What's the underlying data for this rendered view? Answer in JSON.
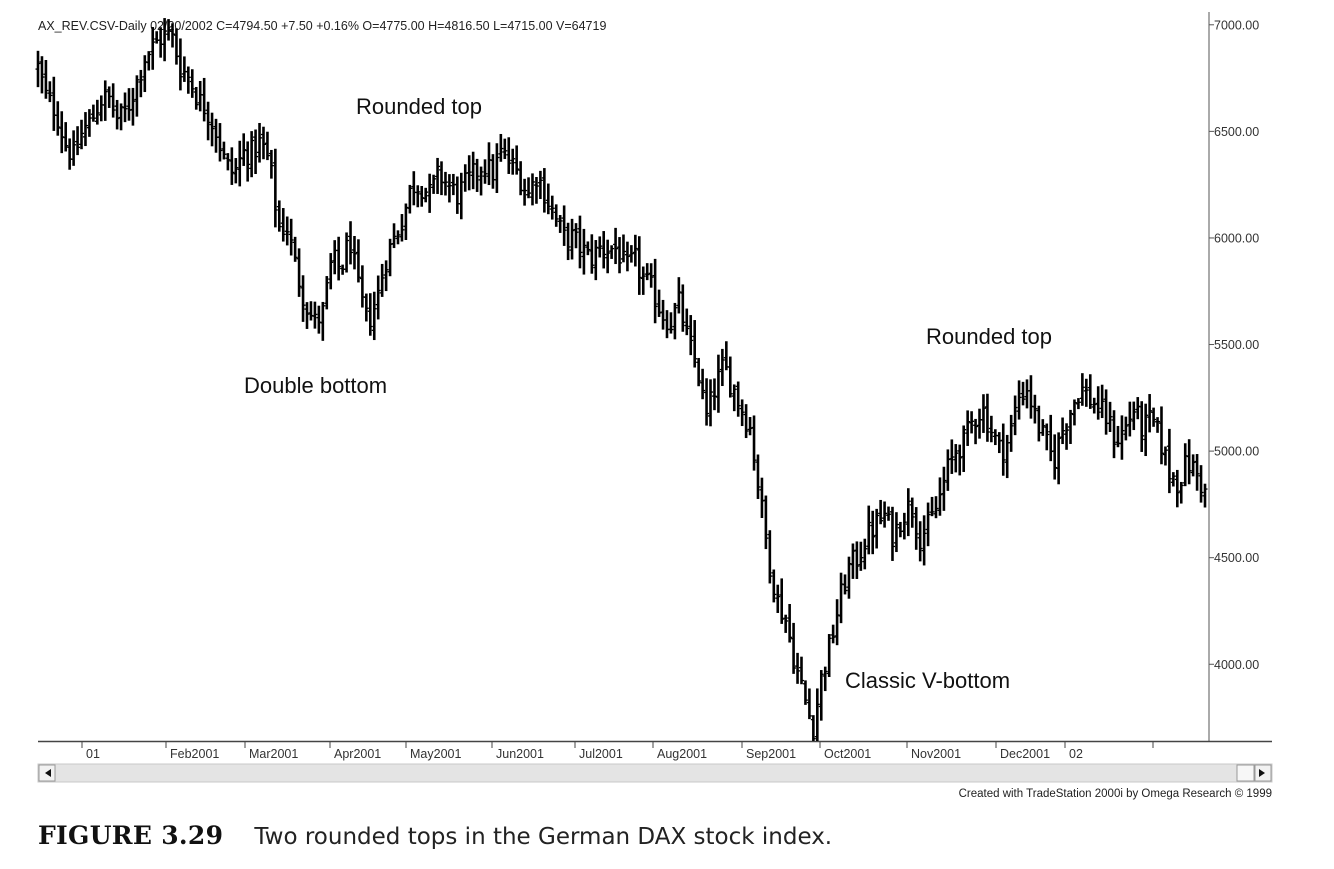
{
  "header_text": "AX_REV.CSV-Daily   02/20/2002  C=4794.50  +7.50  +0.16%  O=4775.00  H=4816.50  L=4715.00  V=64719",
  "credit": "Created with TradeStation 2000i by Omega Research © 1999",
  "caption": {
    "label": "FIGURE 3.29",
    "text": "Two rounded tops in the German DAX stock index."
  },
  "chart_data": {
    "type": "bar",
    "subtype": "ohlc",
    "ylim": [
      3640,
      7060
    ],
    "y_ticks": [
      7000,
      6500,
      6000,
      5500,
      5000,
      4500,
      4000
    ],
    "y_tick_labels": [
      "7000.00",
      "6500.00",
      "6000.00",
      "5500.00",
      "5000.00",
      "4500.00",
      "4000.00"
    ],
    "x_tick_labels": [
      "01",
      "Feb2001",
      "Mar2001",
      "Apr2001",
      "May2001",
      "Jun2001",
      "Jul2001",
      "Aug2001",
      "Sep2001",
      "Oct2001",
      "Nov2001",
      "Dec2001",
      "02"
    ],
    "annotations": [
      {
        "text": "Rounded top",
        "date": "May2001"
      },
      {
        "text": "Double bottom",
        "date": "Mar2001"
      },
      {
        "text": "Rounded top",
        "date": "Dec2001"
      },
      {
        "text": "Classic V-bottom",
        "date": "Sep2001"
      }
    ],
    "price_anchors": [
      [
        6800,
        6650
      ],
      [
        6600,
        6450
      ],
      [
        6380,
        6500
      ],
      [
        6550,
        6650
      ],
      [
        6650,
        6550
      ],
      [
        6600,
        6720
      ],
      [
        6850,
        6900
      ],
      [
        6950,
        6950
      ],
      [
        6800,
        6750
      ],
      [
        6650,
        6600
      ],
      [
        6500,
        6350
      ],
      [
        6300,
        6400
      ],
      [
        6400,
        6450
      ],
      [
        6350,
        6050
      ],
      [
        6050,
        5850
      ],
      [
        5700,
        5600
      ],
      [
        5650,
        5900
      ],
      [
        5850,
        6000
      ],
      [
        5750,
        5600
      ],
      [
        5700,
        5900
      ],
      [
        6000,
        6100
      ],
      [
        6250,
        6250
      ],
      [
        6200,
        6300
      ],
      [
        6250,
        6200
      ],
      [
        6250,
        6300
      ],
      [
        6350,
        6300
      ],
      [
        6400,
        6350
      ],
      [
        6300,
        6200
      ],
      [
        6300,
        6200
      ],
      [
        6100,
        6000
      ],
      [
        6000,
        5950
      ],
      [
        5900,
        5950
      ],
      [
        5950,
        5950
      ],
      [
        5850,
        5900
      ],
      [
        5800,
        5750
      ],
      [
        5650,
        5600
      ],
      [
        5700,
        5500
      ],
      [
        5400,
        5150
      ],
      [
        5300,
        5400
      ],
      [
        5300,
        5200
      ],
      [
        5100,
        4800
      ],
      [
        4500,
        4300
      ],
      [
        4200,
        4000
      ],
      [
        3850,
        3700
      ],
      [
        3950,
        4100
      ],
      [
        4300,
        4450
      ],
      [
        4500,
        4600
      ],
      [
        4650,
        4700
      ],
      [
        4600,
        4700
      ],
      [
        4750,
        4600
      ],
      [
        4650,
        4750
      ],
      [
        4900,
        5000
      ],
      [
        5050,
        5150
      ],
      [
        5200,
        5100
      ],
      [
        5000,
        5050
      ],
      [
        5250,
        5300
      ],
      [
        5150,
        5050
      ],
      [
        4950,
        5100
      ],
      [
        5200,
        5300
      ],
      [
        5250,
        5200
      ],
      [
        5150,
        5050
      ],
      [
        5100,
        5200
      ],
      [
        5100,
        5150
      ],
      [
        5050,
        4900
      ],
      [
        4850,
        4950
      ],
      [
        4900,
        4800
      ]
    ]
  }
}
